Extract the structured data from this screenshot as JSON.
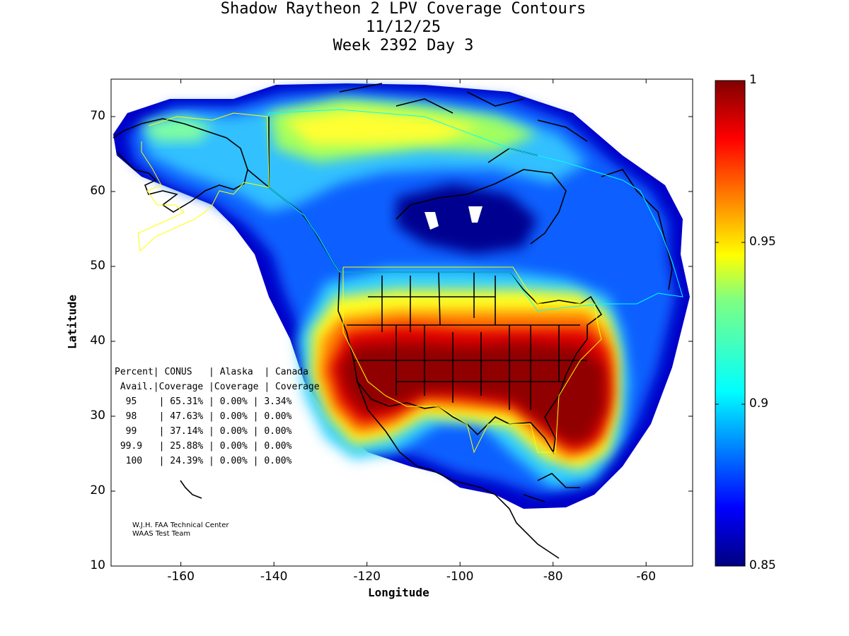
{
  "title": {
    "line1": "Shadow Raytheon 2 LPV Coverage Contours",
    "line2": "11/12/25",
    "line3": "Week 2392 Day 3"
  },
  "axes": {
    "xlabel": "Longitude",
    "ylabel": "Latitude",
    "xlim": [
      -175,
      -50
    ],
    "ylim": [
      10,
      75
    ],
    "xticks": [
      -160,
      -140,
      -120,
      -100,
      -80,
      -60
    ],
    "yticks": [
      10,
      20,
      30,
      40,
      50,
      60,
      70
    ],
    "xtick_labels": [
      "-160",
      "-140",
      "-120",
      "-100",
      "-80",
      "-60"
    ],
    "ytick_labels": [
      "10",
      "20",
      "30",
      "40",
      "50",
      "60",
      "70"
    ]
  },
  "colorbar": {
    "min": 0.85,
    "max": 1,
    "ticks": [
      1,
      0.95,
      0.9,
      0.85
    ],
    "tick_labels": [
      "1",
      "0.95",
      "0.9",
      "0.85"
    ],
    "colormap": "jet"
  },
  "stats_table": {
    "header1": [
      "Percent",
      "CONUS",
      "Alaska",
      "Canada"
    ],
    "header2": [
      "Avail.",
      "Coverage",
      "Coverage",
      "Coverage"
    ],
    "rows": [
      [
        "95",
        "65.31%",
        "0.00%",
        "3.34%"
      ],
      [
        "98",
        "47.63%",
        "0.00%",
        "0.00%"
      ],
      [
        "99",
        "37.14%",
        "0.00%",
        "0.00%"
      ],
      [
        "99.9",
        "25.88%",
        "0.00%",
        "0.00%"
      ],
      [
        "100",
        "24.39%",
        "0.00%",
        "0.00%"
      ]
    ]
  },
  "credits": {
    "line1": "W.J.H. FAA Technical Center",
    "line2": "WAAS Test Team"
  },
  "colors": {
    "border": "#000000",
    "alaska_outline": "#ffff00",
    "canada_outline": "#00ffff",
    "conus_outline": "#ffff00"
  },
  "chart_data": {
    "type": "heatmap",
    "xlabel": "Longitude",
    "ylabel": "Latitude",
    "xlim": [
      -175,
      -50
    ],
    "ylim": [
      10,
      75
    ],
    "value_range": [
      0.85,
      1
    ],
    "regions": [
      {
        "lon": -95,
        "lat": 34,
        "value": 1.0
      },
      {
        "lon": -115,
        "lat": 34,
        "value": 0.995
      },
      {
        "lon": -75,
        "lat": 32,
        "value": 1.0
      },
      {
        "lon": -100,
        "lat": 45,
        "value": 0.94
      },
      {
        "lon": -110,
        "lat": 65,
        "value": 0.93
      },
      {
        "lon": -100,
        "lat": 57,
        "value": 0.85
      },
      {
        "lon": -155,
        "lat": 65,
        "value": 0.91
      }
    ]
  }
}
